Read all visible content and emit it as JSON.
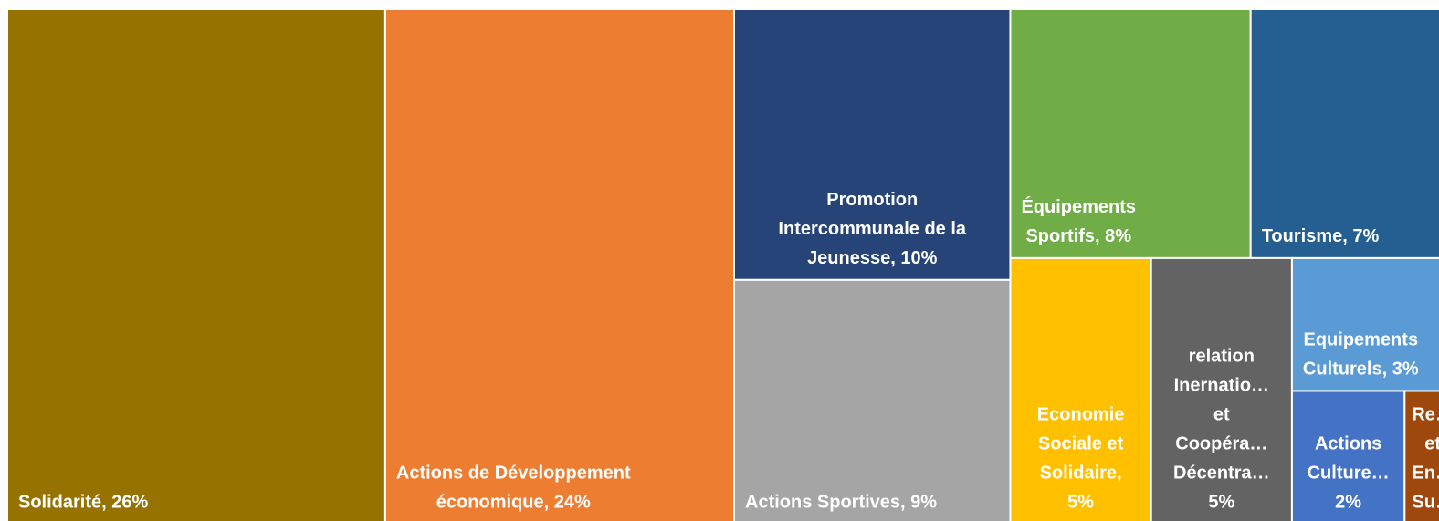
{
  "chart_data": {
    "type": "treemap",
    "labels": [
      [
        "Solidarité, 26%"
      ],
      [
        "Actions de Développement",
        "économique, 24%"
      ],
      [
        "Promotion",
        "Intercommunale de la",
        "Jeunesse, 10%"
      ],
      [
        "Actions Sportives, 9%"
      ],
      [
        "Équipements",
        "Sportifs, 8%"
      ],
      [
        "Tourisme, 7%"
      ],
      [
        "Economie",
        "Sociale et",
        "Solidaire,",
        "5%"
      ],
      [
        "relation",
        "Inernatio…",
        "et",
        "Coopéra…",
        "Décentra…",
        "5%"
      ],
      [
        "Equipements",
        "Culturels, 3%"
      ],
      [
        "Actions",
        "Culture…",
        "2%"
      ],
      [
        "Re…",
        "et",
        "En…",
        "Su…"
      ]
    ],
    "values": [
      26,
      24,
      10,
      9,
      8,
      7,
      5,
      5,
      3,
      2,
      1
    ],
    "colors": [
      "#967300",
      "#ed7d31",
      "#264478",
      "#a5a5a5",
      "#70ad47",
      "#255e91",
      "#ffc000",
      "#636363",
      "#5b9bd5",
      "#4472c4",
      "#9e480e"
    ]
  }
}
